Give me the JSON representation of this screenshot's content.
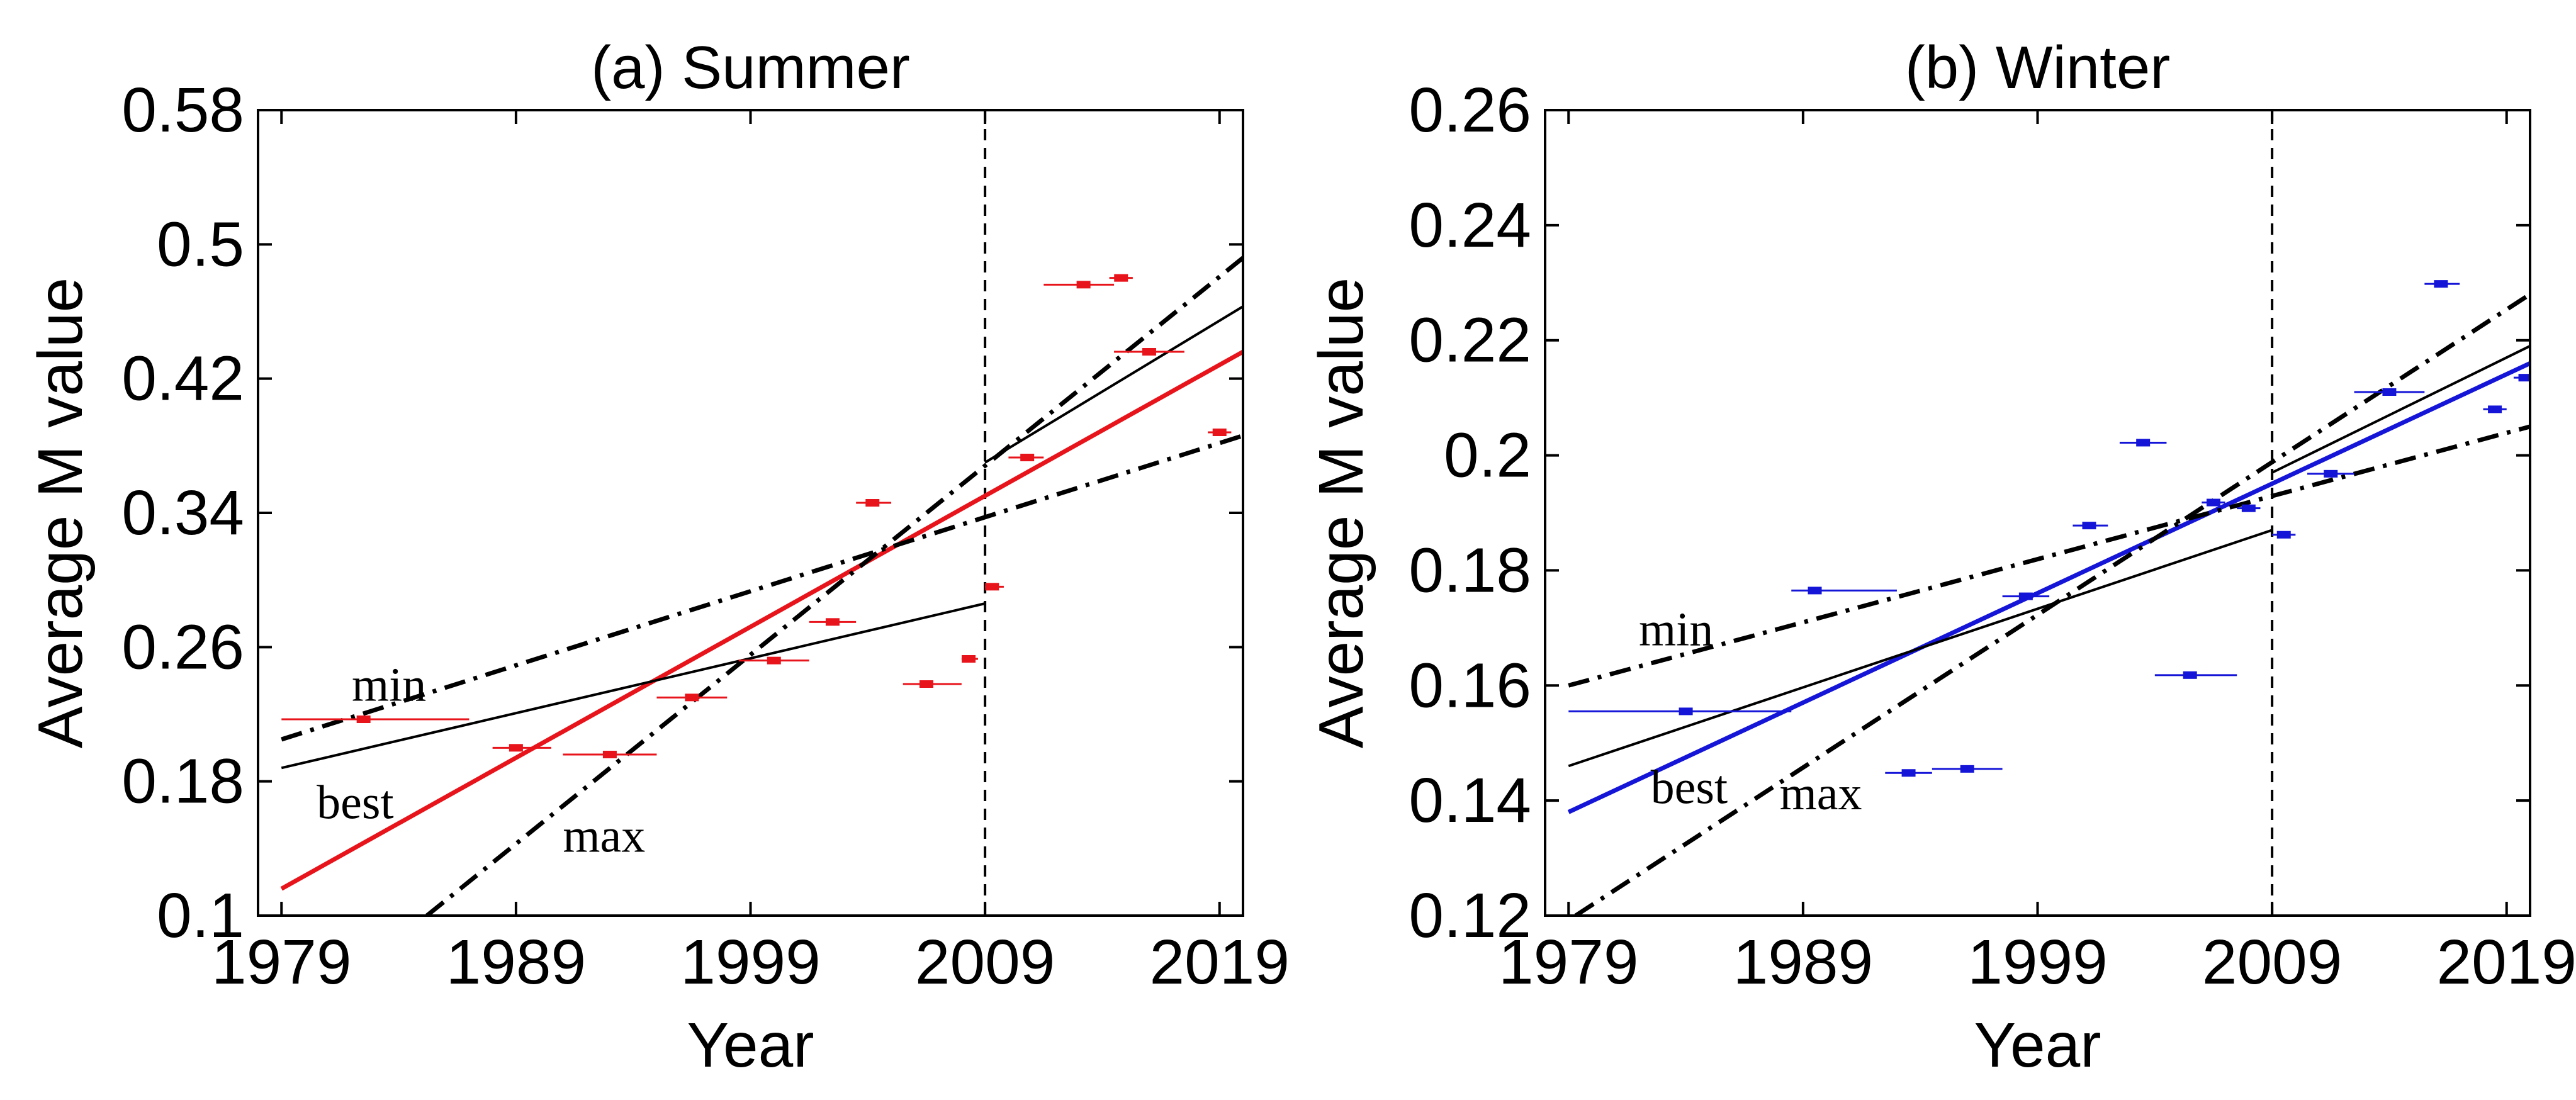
{
  "chart_data": [
    {
      "type": "scatter",
      "title": "(a) Summer",
      "xlabel": "Year",
      "ylabel": "Average M value",
      "xlim": [
        1978,
        2020
      ],
      "ylim": [
        0.1,
        0.58
      ],
      "xticks": [
        1979,
        1989,
        1999,
        2009,
        2019
      ],
      "yticks": [
        0.1,
        0.18,
        0.26,
        0.34,
        0.42,
        0.5,
        0.58
      ],
      "ytick_labels": [
        "0.1",
        "0.18",
        "0.26",
        "0.34",
        "0.42",
        "0.5",
        "0.58"
      ],
      "xtick_labels": [
        "1979",
        "1989",
        "1999",
        "2009",
        "2019"
      ],
      "grid": false,
      "vline_x": 2009,
      "colors": {
        "data": "#e8141b",
        "best_fit": "#e8141b",
        "lines": "#000000"
      },
      "points": [
        {
          "x": 1982.5,
          "y": 0.217,
          "xerr_low": 1979.0,
          "xerr_high": 1987.0
        },
        {
          "x": 1989.0,
          "y": 0.2,
          "xerr_low": 1988.0,
          "xerr_high": 1990.5
        },
        {
          "x": 1993.0,
          "y": 0.196,
          "xerr_low": 1991.0,
          "xerr_high": 1995.0
        },
        {
          "x": 1996.5,
          "y": 0.23,
          "xerr_low": 1995.0,
          "xerr_high": 1998.0
        },
        {
          "x": 2000.0,
          "y": 0.252,
          "xerr_low": 1998.5,
          "xerr_high": 2001.5
        },
        {
          "x": 2002.5,
          "y": 0.275,
          "xerr_low": 2001.5,
          "xerr_high": 2003.5
        },
        {
          "x": 2004.2,
          "y": 0.346,
          "xerr_low": 2003.5,
          "xerr_high": 2005.0
        },
        {
          "x": 2006.5,
          "y": 0.238,
          "xerr_low": 2005.5,
          "xerr_high": 2008.0
        },
        {
          "x": 2008.3,
          "y": 0.253,
          "xerr_low": 2008.0,
          "xerr_high": 2008.7
        },
        {
          "x": 2009.3,
          "y": 0.296,
          "xerr_low": 2009.0,
          "xerr_high": 2009.8
        },
        {
          "x": 2010.8,
          "y": 0.373,
          "xerr_low": 2010.0,
          "xerr_high": 2011.5
        },
        {
          "x": 2013.2,
          "y": 0.476,
          "xerr_low": 2011.5,
          "xerr_high": 2014.5
        },
        {
          "x": 2014.8,
          "y": 0.48,
          "xerr_low": 2014.3,
          "xerr_high": 2015.3
        },
        {
          "x": 2016.0,
          "y": 0.436,
          "xerr_low": 2014.5,
          "xerr_high": 2017.5
        },
        {
          "x": 2019.0,
          "y": 0.388,
          "xerr_low": 2018.5,
          "xerr_high": 2019.5
        }
      ],
      "fit_lines": [
        {
          "name": "best",
          "style": "solid",
          "color": "#e8141b",
          "x": [
            1979,
            2020
          ],
          "y": [
            0.116,
            0.436
          ]
        },
        {
          "name": "black_solid_1",
          "style": "solid",
          "color": "#000000",
          "x": [
            1979,
            2009
          ],
          "y": [
            0.188,
            0.286
          ]
        },
        {
          "name": "black_solid_2",
          "style": "solid",
          "color": "#000000",
          "x": [
            2009,
            2020
          ],
          "y": [
            0.37,
            0.463
          ]
        },
        {
          "name": "min",
          "style": "dashdot",
          "color": "#000000",
          "x": [
            1979,
            2020
          ],
          "y": [
            0.205,
            0.386
          ]
        },
        {
          "name": "max",
          "style": "dashdot",
          "color": "#000000",
          "x": [
            1985.2,
            2020
          ],
          "y": [
            0.1,
            0.492
          ]
        }
      ],
      "annotations": [
        {
          "text": "min",
          "x": 1982.0,
          "y": 0.228
        },
        {
          "text": "best",
          "x": 1980.5,
          "y": 0.158
        },
        {
          "text": "max",
          "x": 1991.0,
          "y": 0.138
        }
      ]
    },
    {
      "type": "scatter",
      "title": "(b) Winter",
      "xlabel": "Year",
      "ylabel": "Average M value",
      "xlim": [
        1978,
        2020
      ],
      "ylim": [
        0.12,
        0.26
      ],
      "xticks": [
        1979,
        1989,
        1999,
        2009,
        2019
      ],
      "yticks": [
        0.12,
        0.14,
        0.16,
        0.18,
        0.2,
        0.22,
        0.24,
        0.26
      ],
      "ytick_labels": [
        "0.12",
        "0.14",
        "0.16",
        "0.18",
        "0.2",
        "0.22",
        "0.24",
        "0.26"
      ],
      "xtick_labels": [
        "1979",
        "1989",
        "1999",
        "2009",
        "2019"
      ],
      "grid": false,
      "vline_x": 2009,
      "colors": {
        "data": "#1515d8",
        "best_fit": "#1515d8",
        "lines": "#000000"
      },
      "points": [
        {
          "x": 1984.0,
          "y": 0.1555,
          "xerr_low": 1979.0,
          "xerr_high": 1988.5
        },
        {
          "x": 1989.5,
          "y": 0.1765,
          "xerr_low": 1988.5,
          "xerr_high": 1993.0
        },
        {
          "x": 1993.5,
          "y": 0.1448,
          "xerr_low": 1992.5,
          "xerr_high": 1994.5
        },
        {
          "x": 1996.0,
          "y": 0.1455,
          "xerr_low": 1994.5,
          "xerr_high": 1997.5
        },
        {
          "x": 1998.5,
          "y": 0.1755,
          "xerr_low": 1997.5,
          "xerr_high": 1999.5
        },
        {
          "x": 2001.2,
          "y": 0.1878,
          "xerr_low": 2000.5,
          "xerr_high": 2002.0
        },
        {
          "x": 2003.5,
          "y": 0.2022,
          "xerr_low": 2002.5,
          "xerr_high": 2004.5
        },
        {
          "x": 2005.5,
          "y": 0.1618,
          "xerr_low": 2004.0,
          "xerr_high": 2007.5
        },
        {
          "x": 2006.5,
          "y": 0.1918,
          "xerr_low": 2006.0,
          "xerr_high": 2007.0
        },
        {
          "x": 2008.0,
          "y": 0.1908,
          "xerr_low": 2007.5,
          "xerr_high": 2008.5
        },
        {
          "x": 2009.5,
          "y": 0.1862,
          "xerr_low": 2009.0,
          "xerr_high": 2010.0
        },
        {
          "x": 2011.5,
          "y": 0.1968,
          "xerr_low": 2010.5,
          "xerr_high": 2012.5
        },
        {
          "x": 2014.0,
          "y": 0.211,
          "xerr_low": 2012.5,
          "xerr_high": 2015.5
        },
        {
          "x": 2016.2,
          "y": 0.2298,
          "xerr_low": 2015.5,
          "xerr_high": 2017.0
        },
        {
          "x": 2018.5,
          "y": 0.208,
          "xerr_low": 2018.0,
          "xerr_high": 2019.0
        },
        {
          "x": 2019.8,
          "y": 0.2135,
          "xerr_low": 2019.3,
          "xerr_high": 2020.0
        }
      ],
      "fit_lines": [
        {
          "name": "best",
          "style": "solid",
          "color": "#1515d8",
          "x": [
            1979,
            2020
          ],
          "y": [
            0.138,
            0.216
          ]
        },
        {
          "name": "black_solid_1",
          "style": "solid",
          "color": "#000000",
          "x": [
            1979,
            2009
          ],
          "y": [
            0.146,
            0.187
          ]
        },
        {
          "name": "black_solid_2",
          "style": "solid",
          "color": "#000000",
          "x": [
            2009,
            2020
          ],
          "y": [
            0.197,
            0.219
          ]
        },
        {
          "name": "min",
          "style": "dashdot",
          "color": "#000000",
          "x": [
            1979,
            2020
          ],
          "y": [
            0.16,
            0.205
          ]
        },
        {
          "name": "max",
          "style": "dashdot",
          "color": "#000000",
          "x": [
            1979.3,
            2020
          ],
          "y": [
            0.12,
            0.228
          ]
        }
      ],
      "annotations": [
        {
          "text": "min",
          "x": 1982.0,
          "y": 0.167
        },
        {
          "text": "best",
          "x": 1982.5,
          "y": 0.1395
        },
        {
          "text": "max",
          "x": 1988.0,
          "y": 0.1385
        }
      ]
    }
  ]
}
